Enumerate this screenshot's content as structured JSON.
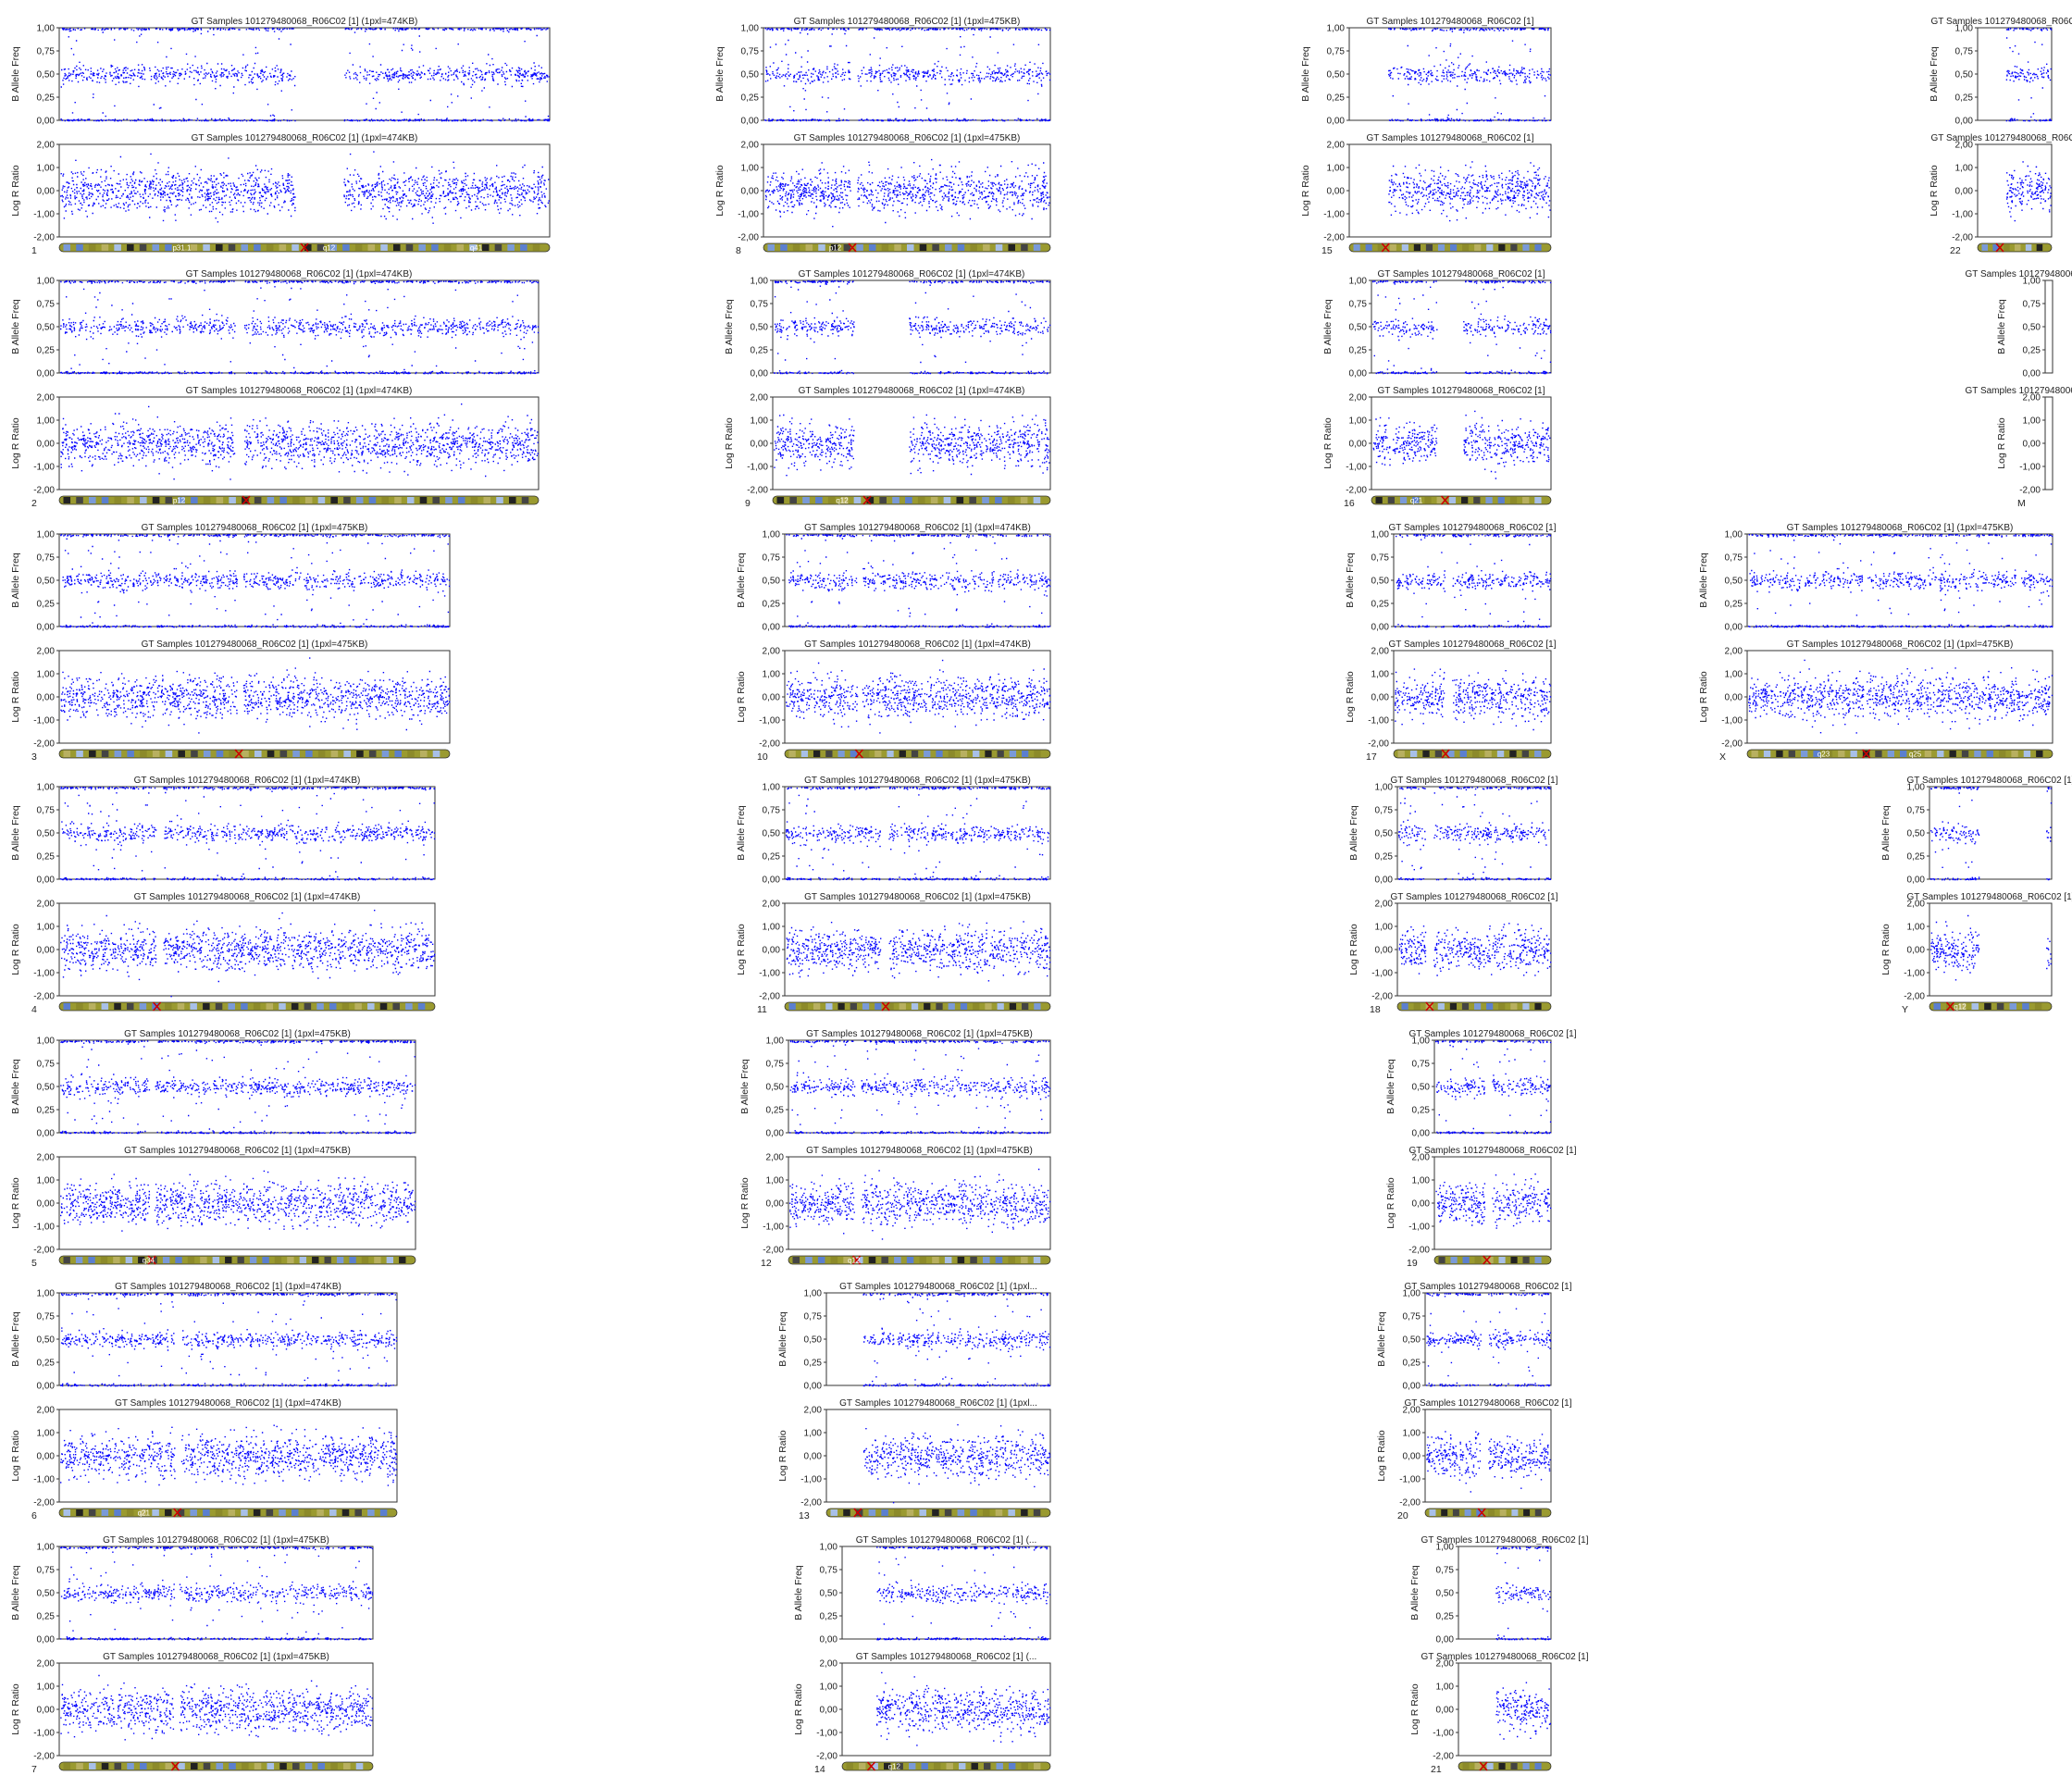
{
  "chart_data": {
    "type": "scatter",
    "title": "GT Samples 101279480068_R06C02 [1]",
    "baf_ylabel": "B Allele Freq",
    "lrr_ylabel": "Log R Ratio",
    "baf_ylim": [
      0,
      1
    ],
    "lrr_ylim": [
      -2,
      2
    ],
    "baf_ticks": [
      "0,00",
      "0,25",
      "0,50",
      "0,75",
      "1,00"
    ],
    "lrr_ticks": [
      "-2,00",
      "-1,00",
      "0,00",
      "1,00",
      "2,00"
    ],
    "point_color": "#0000ff",
    "grid": false,
    "chromosomes": [
      {
        "label": "1",
        "res": "(1pxl=474KB)",
        "gaps": [
          [
            0.48,
            0.58
          ]
        ],
        "bands": [
          "p31.1",
          "q12",
          "q41"
        ],
        "cen": 0.5
      },
      {
        "label": "2",
        "res": "(1pxl=474KB)",
        "gaps": [
          [
            0.365,
            0.385
          ]
        ],
        "bands": [
          "p12"
        ],
        "cen": 0.39
      },
      {
        "label": "3",
        "res": "(1pxl=475KB)",
        "gaps": [
          [
            0.455,
            0.47
          ]
        ],
        "bands": [],
        "cen": 0.46
      },
      {
        "label": "4",
        "res": "(1pxl=474KB)",
        "gaps": [
          [
            0.255,
            0.275
          ]
        ],
        "bands": [],
        "cen": 0.26
      },
      {
        "label": "5",
        "res": "(1pxl=475KB)",
        "gaps": [
          [
            0.25,
            0.265
          ]
        ],
        "bands": [
          "q34"
        ],
        "cen": 0.26
      },
      {
        "label": "6",
        "res": "(1pxl=474KB)",
        "gaps": [
          [
            0.34,
            0.36
          ]
        ],
        "bands": [
          "q21"
        ],
        "cen": 0.35
      },
      {
        "label": "7",
        "res": "(1pxl=475KB)",
        "gaps": [
          [
            0.365,
            0.38
          ]
        ],
        "bands": [],
        "cen": 0.37
      },
      {
        "label": "8",
        "res": "(1pxl=475KB)",
        "gaps": [
          [
            0.3,
            0.325
          ]
        ],
        "bands": [
          "p12"
        ],
        "cen": 0.31
      },
      {
        "label": "9",
        "res": "(1pxl=474KB)",
        "gaps": [
          [
            0.29,
            0.49
          ]
        ],
        "bands": [
          "q12"
        ],
        "cen": 0.34
      },
      {
        "label": "10",
        "res": "(1pxl=474KB)",
        "gaps": [
          [
            0.27,
            0.29
          ]
        ],
        "bands": [],
        "cen": 0.28
      },
      {
        "label": "11",
        "res": "(1pxl=475KB)",
        "gaps": [
          [
            0.36,
            0.39
          ]
        ],
        "bands": [],
        "cen": 0.38
      },
      {
        "label": "12",
        "res": "(1pxl=475KB)",
        "gaps": [
          [
            0.25,
            0.275
          ]
        ],
        "bands": [
          "q12"
        ],
        "cen": 0.26
      },
      {
        "label": "13",
        "res": "(1pxl...",
        "gaps": [
          [
            0.0,
            0.16
          ]
        ],
        "bands": [],
        "cen": 0.14
      },
      {
        "label": "14",
        "res": "(...",
        "gaps": [
          [
            0.0,
            0.16
          ]
        ],
        "bands": [
          "q12"
        ],
        "cen": 0.14
      },
      {
        "label": "15",
        "res": "",
        "gaps": [
          [
            0.0,
            0.19
          ]
        ],
        "bands": [],
        "cen": 0.18
      },
      {
        "label": "16",
        "res": "",
        "gaps": [
          [
            0.36,
            0.51
          ]
        ],
        "bands": [
          "q21"
        ],
        "cen": 0.41
      },
      {
        "label": "17",
        "res": "",
        "gaps": [
          [
            0.32,
            0.37
          ]
        ],
        "bands": [],
        "cen": 0.33
      },
      {
        "label": "18",
        "res": "",
        "gaps": [
          [
            0.18,
            0.23
          ]
        ],
        "bands": [],
        "cen": 0.21
      },
      {
        "label": "19",
        "res": "",
        "gaps": [
          [
            0.43,
            0.49
          ]
        ],
        "bands": [],
        "cen": 0.45
      },
      {
        "label": "20",
        "res": "",
        "gaps": [
          [
            0.44,
            0.5
          ]
        ],
        "bands": [],
        "cen": 0.45
      },
      {
        "label": "21",
        "res": "",
        "gaps": [
          [
            0.0,
            0.4
          ]
        ],
        "bands": [],
        "cen": 0.27
      },
      {
        "label": "22",
        "res": "",
        "gaps": [
          [
            0.0,
            0.38
          ]
        ],
        "bands": [],
        "cen": 0.3
      },
      {
        "label": "M",
        "res": "",
        "gaps": [
          [
            0.0,
            1.0
          ]
        ],
        "bands": [],
        "cen": -1
      },
      {
        "label": "X",
        "res": "(1pxl=475KB)",
        "gaps": [
          [
            0.38,
            0.39
          ]
        ],
        "bands": [
          "q23",
          "q25"
        ],
        "cen": 0.39
      },
      {
        "label": "Y",
        "res": "",
        "gaps": [
          [
            0.4,
            0.96
          ]
        ],
        "bands": [
          "q12"
        ],
        "cen": 0.17
      }
    ]
  }
}
